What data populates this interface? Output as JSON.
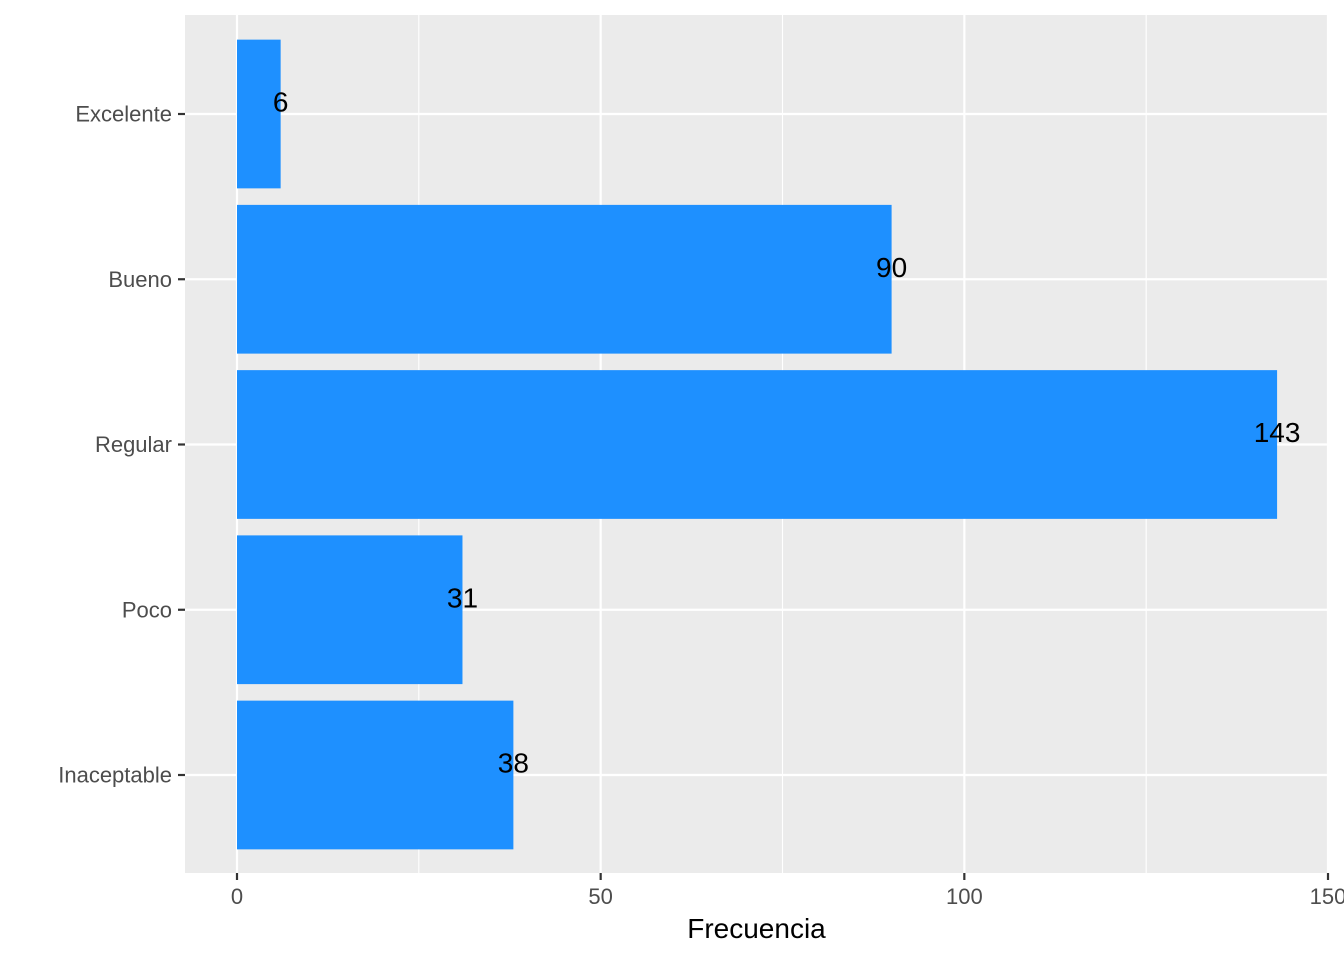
{
  "chart_data": {
    "type": "bar",
    "orientation": "horizontal",
    "categories": [
      "Inaceptable",
      "Poco",
      "Regular",
      "Bueno",
      "Excelente"
    ],
    "values": [
      38,
      31,
      143,
      90,
      6
    ],
    "data_labels": [
      "38",
      "31",
      "143",
      "90",
      "6"
    ],
    "title": "",
    "xlabel": "Frecuencia",
    "ylabel": "",
    "xlim": [
      0,
      150
    ],
    "x_ticks": [
      0,
      50,
      100,
      150
    ],
    "x_tick_labels": [
      "0",
      "50",
      "100",
      "150"
    ],
    "grid": true,
    "legend": "none",
    "colors": {
      "bar": "#1E90FF",
      "panel_background": "#EBEBEB",
      "grid": "#FFFFFF",
      "tick_text": "#4D4D4D",
      "tick_mark": "#333333"
    }
  }
}
